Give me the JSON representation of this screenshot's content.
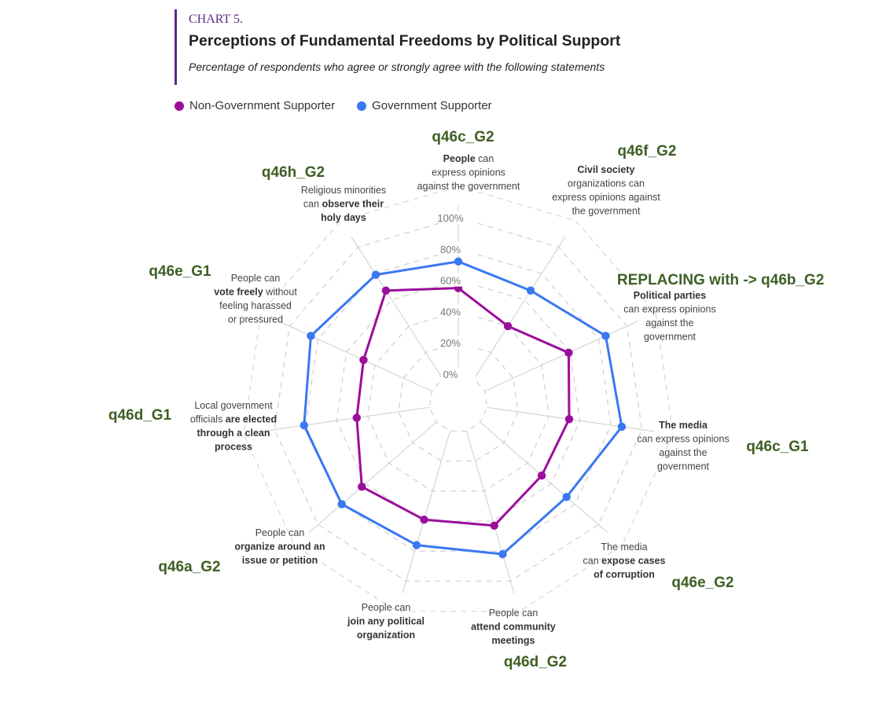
{
  "header": {
    "kicker": "CHART 5.",
    "title": "Perceptions of Fundamental Freedoms by Political Support",
    "subtitle": "Percentage of respondents who agree or strongly agree with the following statements"
  },
  "legend": [
    {
      "name": "Non-Government Supporter",
      "color": "#9b0e9b"
    },
    {
      "name": "Government Supporter",
      "color": "#3a78f2"
    }
  ],
  "chart_data": {
    "type": "radar",
    "rlim": [
      0,
      100
    ],
    "ticks": [
      "0%",
      "20%",
      "40%",
      "60%",
      "80%",
      "100%"
    ],
    "grid": true,
    "legend_position": "top-left",
    "axes": [
      {
        "code": "q46c_G2",
        "label": [
          [
            {
              "t": "People",
              "b": true
            },
            {
              "t": " can",
              "b": false
            }
          ],
          [
            {
              "t": "express opinions",
              "b": false
            }
          ],
          [
            {
              "t": "against the government",
              "b": false
            }
          ]
        ]
      },
      {
        "code": "q46f_G2",
        "label": [
          [
            {
              "t": "Civil society",
              "b": true
            }
          ],
          [
            {
              "t": "organizations can",
              "b": false
            }
          ],
          [
            {
              "t": "express opinions against",
              "b": false
            }
          ],
          [
            {
              "t": "the government",
              "b": false
            }
          ]
        ]
      },
      {
        "code": "REPLACING with -> q46b_G2",
        "label": [
          [
            {
              "t": "Political parties",
              "b": true
            }
          ],
          [
            {
              "t": "can express opinions",
              "b": false
            }
          ],
          [
            {
              "t": "against the",
              "b": false
            }
          ],
          [
            {
              "t": "government",
              "b": false
            }
          ]
        ]
      },
      {
        "code": "q46c_G1",
        "label": [
          [
            {
              "t": "The media",
              "b": true
            }
          ],
          [
            {
              "t": "can express opinions",
              "b": false
            }
          ],
          [
            {
              "t": "against the",
              "b": false
            }
          ],
          [
            {
              "t": "government",
              "b": false
            }
          ]
        ]
      },
      {
        "code": "q46e_G2",
        "label": [
          [
            {
              "t": "The media",
              "b": false
            }
          ],
          [
            {
              "t": "can ",
              "b": false
            },
            {
              "t": "expose cases",
              "b": true
            }
          ],
          [
            {
              "t": "of corruption",
              "b": true
            }
          ]
        ]
      },
      {
        "code": "q46d_G2",
        "label": [
          [
            {
              "t": "People can",
              "b": false
            }
          ],
          [
            {
              "t": "attend community",
              "b": true
            }
          ],
          [
            {
              "t": "meetings",
              "b": true
            }
          ]
        ]
      },
      {
        "code": "",
        "label": [
          [
            {
              "t": "People can",
              "b": false
            }
          ],
          [
            {
              "t": "join any political",
              "b": true
            }
          ],
          [
            {
              "t": "organization",
              "b": true
            }
          ]
        ]
      },
      {
        "code": "q46a_G2",
        "label": [
          [
            {
              "t": "People can",
              "b": false
            }
          ],
          [
            {
              "t": "organize around an",
              "b": true
            }
          ],
          [
            {
              "t": "issue or petition",
              "b": true
            }
          ]
        ]
      },
      {
        "code": "q46d_G1",
        "label": [
          [
            {
              "t": "Local government",
              "b": false
            }
          ],
          [
            {
              "t": "officials ",
              "b": false
            },
            {
              "t": "are elected",
              "b": true
            }
          ],
          [
            {
              "t": "through a clean",
              "b": true
            }
          ],
          [
            {
              "t": "process",
              "b": true
            }
          ]
        ]
      },
      {
        "code": "q46e_G1",
        "label": [
          [
            {
              "t": "People can",
              "b": false
            }
          ],
          [
            {
              "t": "vote freely",
              "b": true
            },
            {
              "t": " without",
              "b": false
            }
          ],
          [
            {
              "t": "feeling harassed",
              "b": false
            }
          ],
          [
            {
              "t": "or pressured",
              "b": false
            }
          ]
        ]
      },
      {
        "code": "q46h_G2",
        "label": [
          [
            {
              "t": "Religious minorities",
              "b": false
            }
          ],
          [
            {
              "t": "can ",
              "b": false
            },
            {
              "t": "observe their",
              "b": true
            }
          ],
          [
            {
              "t": "holy days",
              "b": true
            }
          ]
        ]
      }
    ],
    "series": [
      {
        "name": "Non-Government Supporter",
        "color": "#9b0e9b",
        "values": [
          55,
          40,
          59,
          53,
          52,
          63,
          59,
          63,
          47,
          48,
          67
        ]
      },
      {
        "name": "Government Supporter",
        "color": "#3a78f2",
        "values": [
          72,
          67,
          85,
          87,
          73,
          82,
          76,
          80,
          81,
          85,
          79
        ]
      }
    ]
  }
}
